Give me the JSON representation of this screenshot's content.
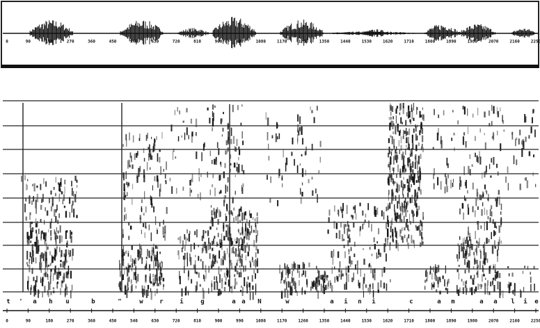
{
  "waveform": {
    "ticks": [
      "0",
      "90",
      "180",
      "270",
      "360",
      "450",
      "540",
      "630",
      "720",
      "810",
      "900",
      "990",
      "1080",
      "1170",
      "1260",
      "1350",
      "1440",
      "1530",
      "1620",
      "1710",
      "1800",
      "1890",
      "1980",
      "2070",
      "2160",
      "2250"
    ]
  },
  "spectrogram": {
    "segments": [
      "t",
      "'",
      "a",
      "h",
      "u",
      "b",
      "\"",
      "w",
      "r",
      "i",
      "g",
      "a",
      "a",
      "N",
      "w",
      "a",
      "i",
      "n",
      "i",
      "c",
      "a",
      "m",
      "a",
      "a",
      "l",
      "i",
      "e"
    ],
    "ticks": [
      "0",
      "90",
      "180",
      "270",
      "360",
      "450",
      "540",
      "630",
      "720",
      "810",
      "900",
      "990",
      "1080",
      "1170",
      "1260",
      "1350",
      "1440",
      "1530",
      "1620",
      "1710",
      "1800",
      "1890",
      "1980",
      "2070",
      "2160",
      "2250"
    ]
  }
}
